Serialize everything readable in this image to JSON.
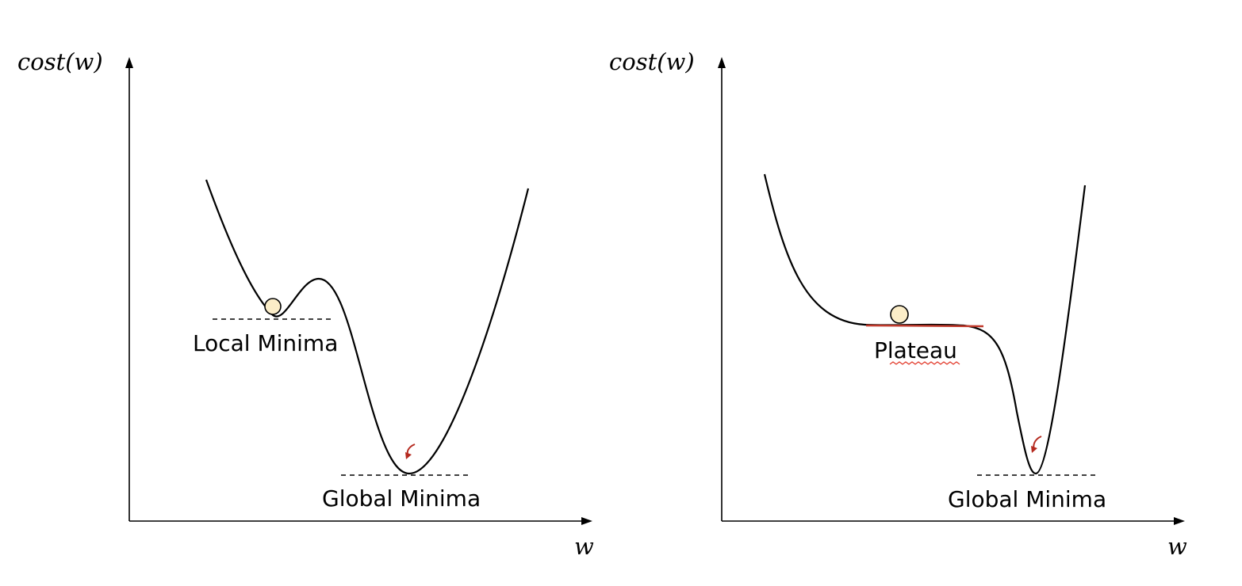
{
  "panels": [
    {
      "ylabel": "cost(w)",
      "xlabel": "w",
      "labels": {
        "local": "Local Minima",
        "global": "Global Minima"
      }
    },
    {
      "ylabel": "cost(w)",
      "xlabel": "w",
      "labels": {
        "plateau": "Plateau",
        "global": "Global Minima"
      }
    }
  ],
  "colors": {
    "curve": "#000000",
    "ball": "#fbedc8",
    "arrow": "#b52a1f",
    "plateau_line": "#c0392b"
  }
}
